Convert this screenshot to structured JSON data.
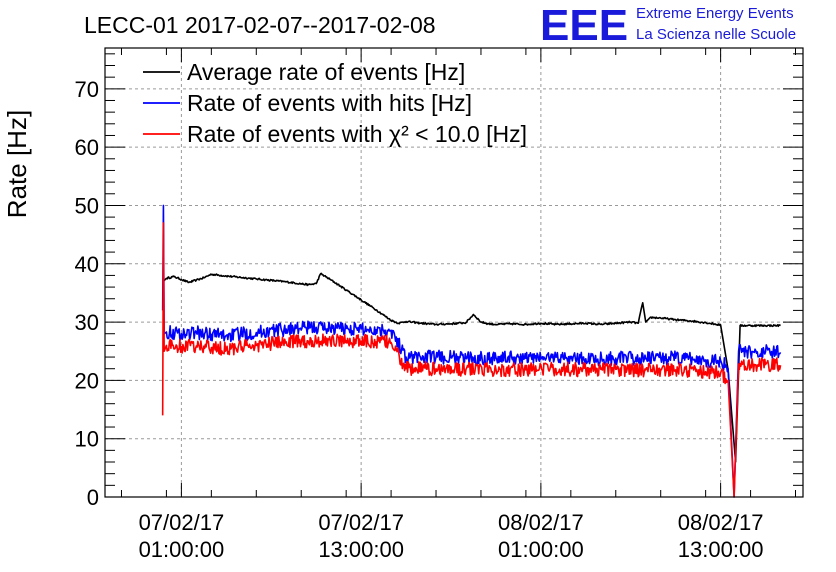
{
  "header": {
    "title": "LECC-01 2017-02-07--2017-02-08",
    "logo_text": "EEE",
    "brand_line1": "Extreme Energy Events",
    "brand_line2": "La Scienza nelle Scuole",
    "brand_color": "#1a1adb"
  },
  "chart_data": {
    "type": "line",
    "title": "LECC-01 2017-02-07--2017-02-08",
    "xlabel": "",
    "ylabel": "Rate [Hz]",
    "x_unit": "hours since 07/02/17 00:00:00",
    "xlim": [
      -4.1,
      42.5
    ],
    "ylim": [
      0,
      77
    ],
    "y_ticks": [
      0,
      10,
      20,
      30,
      40,
      50,
      60,
      70
    ],
    "x_ticks": [
      {
        "x": 1,
        "line1": "07/02/17",
        "line2": "01:00:00"
      },
      {
        "x": 13,
        "line1": "07/02/17",
        "line2": "13:00:00"
      },
      {
        "x": 25,
        "line1": "08/02/17",
        "line2": "01:00:00"
      },
      {
        "x": 37,
        "line1": "08/02/17",
        "line2": "13:00:00"
      }
    ],
    "grid": true,
    "legend_position": "top-left",
    "series": [
      {
        "name": "Average rate of events [Hz]",
        "color": "#000000",
        "noise": 0.15,
        "x": [
          -0.25,
          -0.2,
          0.0,
          0.5,
          1.0,
          1.5,
          2.0,
          2.5,
          3.0,
          4.0,
          6.0,
          8.0,
          9.5,
          10.0,
          10.3,
          11.0,
          12.0,
          13.0,
          14.0,
          15.0,
          15.5,
          16.0,
          17.0,
          18.0,
          19.0,
          20.0,
          20.5,
          21.0,
          21.5,
          22.0,
          23.0,
          24.0,
          25.0,
          26.0,
          27.0,
          28.0,
          29.0,
          30.0,
          31.0,
          31.5,
          31.8,
          32.0,
          32.3,
          33.0,
          34.0,
          35.0,
          36.0,
          36.5,
          37.0,
          37.5,
          38.0,
          38.3,
          39.0,
          40.0,
          41.0
        ],
        "y": [
          37.0,
          37.0,
          37.5,
          37.8,
          37.3,
          36.8,
          37.2,
          37.6,
          38.2,
          37.9,
          37.4,
          36.9,
          36.4,
          36.6,
          38.3,
          37.2,
          35.5,
          33.8,
          32.1,
          30.3,
          29.8,
          30.1,
          29.8,
          29.6,
          29.7,
          29.9,
          31.3,
          30.0,
          29.7,
          29.6,
          29.7,
          29.6,
          29.8,
          29.6,
          29.7,
          29.8,
          29.6,
          29.8,
          30.0,
          29.8,
          33.3,
          30.0,
          30.8,
          30.7,
          30.4,
          30.2,
          29.9,
          29.7,
          29.5,
          21.8,
          6.0,
          29.4,
          29.4,
          29.4,
          29.4
        ]
      },
      {
        "name": "Rate of events with hits [Hz]",
        "color": "#0000ff",
        "noise": 1.2,
        "x": [
          -0.25,
          -0.2,
          -0.15,
          0.0,
          1.0,
          2.0,
          3.0,
          4.0,
          6.0,
          8.0,
          10.0,
          12.0,
          13.0,
          14.0,
          15.0,
          16.0,
          18.0,
          20.0,
          22.0,
          24.0,
          26.0,
          28.0,
          30.0,
          32.0,
          33.0,
          34.0,
          36.0,
          36.5,
          37.0,
          37.5,
          37.9,
          38.2,
          39.0,
          40.0,
          41.0
        ],
        "y": [
          32.0,
          50.0,
          28.0,
          28.3,
          28.0,
          28.2,
          27.9,
          27.7,
          28.2,
          28.8,
          29.1,
          28.9,
          28.8,
          28.7,
          28.6,
          24.0,
          24.0,
          23.8,
          23.9,
          23.8,
          24.0,
          23.7,
          23.8,
          23.7,
          23.9,
          23.8,
          23.5,
          23.3,
          23.4,
          22.0,
          0.0,
          25.0,
          24.8,
          24.9,
          24.8
        ]
      },
      {
        "name": "Rate of events with χ² < 10.0 [Hz]",
        "color": "#ff0000",
        "noise": 1.2,
        "x": [
          -0.25,
          -0.2,
          -0.15,
          0.0,
          1.0,
          2.0,
          3.0,
          4.0,
          6.0,
          8.0,
          10.0,
          12.0,
          13.0,
          14.0,
          15.0,
          16.0,
          18.0,
          20.0,
          22.0,
          24.0,
          26.0,
          28.0,
          30.0,
          32.0,
          33.0,
          34.0,
          36.0,
          36.5,
          37.0,
          37.5,
          37.9,
          38.2,
          39.0,
          40.0,
          41.0
        ],
        "y": [
          14.0,
          47.0,
          25.0,
          26.0,
          25.8,
          25.9,
          25.6,
          25.4,
          26.0,
          26.6,
          26.8,
          26.8,
          26.7,
          26.6,
          26.5,
          22.0,
          22.0,
          21.9,
          21.9,
          21.8,
          22.0,
          21.8,
          21.9,
          21.8,
          21.9,
          21.8,
          21.5,
          21.3,
          21.3,
          20.0,
          0.0,
          22.8,
          22.6,
          22.7,
          22.6
        ]
      }
    ]
  }
}
